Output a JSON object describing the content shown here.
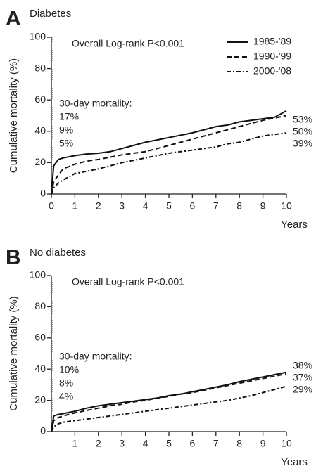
{
  "chart_data": [
    {
      "type": "line",
      "panel": "A",
      "title": "Diabetes",
      "subtitle": "Overall Log-rank P<0.001",
      "y_label": "Cumulative mortality (%)",
      "x_label": "Years",
      "x": [
        0,
        0.1,
        0.3,
        0.5,
        1,
        1.5,
        2,
        2.5,
        3,
        3.5,
        4,
        4.5,
        5,
        5.5,
        6,
        6.5,
        7,
        7.5,
        8,
        8.5,
        9,
        9.5,
        10
      ],
      "xlim": [
        0,
        10
      ],
      "xticks": [
        0,
        1,
        2,
        3,
        4,
        5,
        6,
        7,
        8,
        9,
        10
      ],
      "ylim": [
        0,
        100
      ],
      "yticks": [
        0,
        20,
        40,
        60,
        80,
        100
      ],
      "legend": "upper right",
      "series": [
        {
          "name": "1985-'89",
          "color": "#111111",
          "dash": "solid",
          "values": [
            0,
            18,
            22,
            23,
            24.5,
            25.5,
            26,
            27,
            29,
            31,
            33,
            34.5,
            36,
            37.5,
            39,
            41,
            43,
            44,
            46,
            47,
            48,
            49,
            53
          ]
        },
        {
          "name": "1990-'99",
          "color": "#111111",
          "dash": "dashed",
          "values": [
            0,
            8,
            12,
            16,
            19,
            21,
            22,
            23.5,
            25,
            26,
            27,
            29,
            31,
            33,
            35,
            37,
            39,
            41,
            43,
            45,
            47,
            48.5,
            50
          ]
        },
        {
          "name": "2000-'08",
          "color": "#111111",
          "dash": "dashdot",
          "values": [
            0,
            4,
            7,
            9,
            13,
            14.5,
            16,
            18,
            20,
            21.5,
            23,
            24.5,
            26,
            27,
            28,
            29,
            30,
            32,
            33,
            35,
            37,
            38,
            39
          ]
        }
      ],
      "note_lines": [
        "30-day mortality:",
        "17%",
        "9%",
        "5%"
      ],
      "end_labels": [
        "53%",
        "50%",
        "39%"
      ]
    },
    {
      "type": "line",
      "panel": "B",
      "title": "No diabetes",
      "subtitle": "Overall Log-rank P<0.001",
      "y_label": "Cumulative mortality (%)",
      "x_label": "Years",
      "x": [
        0,
        0.1,
        0.3,
        0.5,
        1,
        1.5,
        2,
        2.5,
        3,
        3.5,
        4,
        4.5,
        5,
        5.5,
        6,
        6.5,
        7,
        7.5,
        8,
        8.5,
        9,
        9.5,
        10
      ],
      "xlim": [
        0,
        10
      ],
      "xticks": [
        1,
        2,
        3,
        4,
        5,
        6,
        7,
        8,
        9,
        10
      ],
      "ylim": [
        0,
        100
      ],
      "yticks": [
        0,
        20,
        40,
        60,
        80,
        100
      ],
      "series": [
        {
          "color": "#111111",
          "dash": "solid",
          "values": [
            0,
            10,
            11,
            11.5,
            13,
            15,
            16.5,
            17.5,
            18.5,
            19.5,
            20.5,
            21.5,
            23,
            24,
            25.5,
            27,
            28.5,
            30,
            32,
            33.5,
            35,
            36.5,
            38
          ]
        },
        {
          "color": "#111111",
          "dash": "dashed",
          "values": [
            0,
            7,
            9,
            10,
            12,
            13.5,
            15,
            16.5,
            17.5,
            19,
            20,
            21.5,
            22.5,
            24,
            25,
            26.5,
            28,
            29.5,
            31,
            32.5,
            34,
            35.5,
            37
          ]
        },
        {
          "color": "#111111",
          "dash": "dashdot",
          "values": [
            0,
            3,
            5,
            6,
            7,
            8,
            9,
            10,
            11,
            12,
            13,
            14,
            15,
            16,
            17,
            18,
            19,
            20,
            21.5,
            23,
            25,
            27,
            29
          ]
        }
      ],
      "note_lines": [
        "30-day mortality:",
        "10%",
        "8%",
        "4%"
      ],
      "end_labels": [
        "38%",
        "37%",
        "29%"
      ]
    }
  ]
}
